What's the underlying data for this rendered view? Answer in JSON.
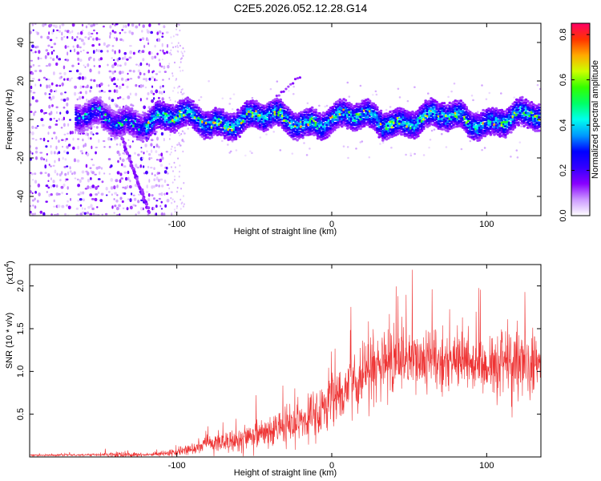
{
  "figure": {
    "title": "C2E5.2026.052.12.28.G14",
    "colors": {
      "background": "#ffffff",
      "axis": "#000000",
      "snr_line": "#ee3333"
    }
  },
  "chart_data": [
    {
      "type": "heatmap",
      "name": "spectrogram",
      "xlabel": "Height of straight line (km)",
      "ylabel": "Frequency (Hz)",
      "xlim": [
        -195,
        135
      ],
      "ylim": [
        -50,
        50
      ],
      "xticks": [
        -100,
        0,
        100
      ],
      "yticks": [
        -40,
        -20,
        0,
        20,
        40
      ],
      "features": [
        {
          "label": "strong band near 0 Hz",
          "x_from": -165,
          "x_to": 135,
          "y_center": 0
        },
        {
          "label": "diagonal streak",
          "x_from": -140,
          "x_to": -118,
          "y_from": 0,
          "y_to": -48
        },
        {
          "label": "scattered noise region",
          "x_from": -195,
          "x_to": -105
        }
      ],
      "colorbar": {
        "label": "Normalized spectral amplitude",
        "range": [
          0.0,
          0.85
        ],
        "ticks": [
          0.0,
          0.2,
          0.4,
          0.6,
          0.8
        ],
        "tick_labels": [
          "0.0",
          "0.2",
          "0.4",
          "0.6",
          "0.8"
        ],
        "colormap": [
          "#ffffff",
          "#cc99ff",
          "#8800ff",
          "#3300ff",
          "#0000ff",
          "#0099ff",
          "#00ffee",
          "#00ff66",
          "#33ff00",
          "#ccff00",
          "#ffaa00",
          "#ff3300",
          "#ff0066"
        ]
      }
    },
    {
      "type": "line",
      "name": "snr",
      "xlabel": "Height of straight line (km)",
      "ylabel": "SNR (10 * v/v)",
      "y_multiplier_label": "(x10",
      "y_multiplier_exp": "4",
      "y_multiplier_close": ")",
      "xlim": [
        -195,
        135
      ],
      "ylim": [
        0,
        22500
      ],
      "xticks": [
        -100,
        0,
        100
      ],
      "yticks": [
        5000,
        10000,
        15000,
        20000
      ],
      "ytick_labels": [
        "0.5",
        "1.0",
        "1.5",
        "2.0"
      ],
      "envelope": {
        "x": [
          -195,
          -150,
          -140,
          -120,
          -100,
          -80,
          -60,
          -40,
          -20,
          0,
          20,
          40,
          60,
          80,
          100,
          120,
          135
        ],
        "mean": [
          200,
          250,
          300,
          250,
          500,
          1500,
          2000,
          3000,
          4000,
          6500,
          9500,
          11500,
          11000,
          11000,
          11000,
          11000,
          11000
        ],
        "spread": [
          100,
          150,
          400,
          150,
          500,
          1000,
          1500,
          2000,
          2500,
          3000,
          3500,
          4000,
          4000,
          3500,
          3500,
          4500,
          4000
        ]
      }
    }
  ]
}
